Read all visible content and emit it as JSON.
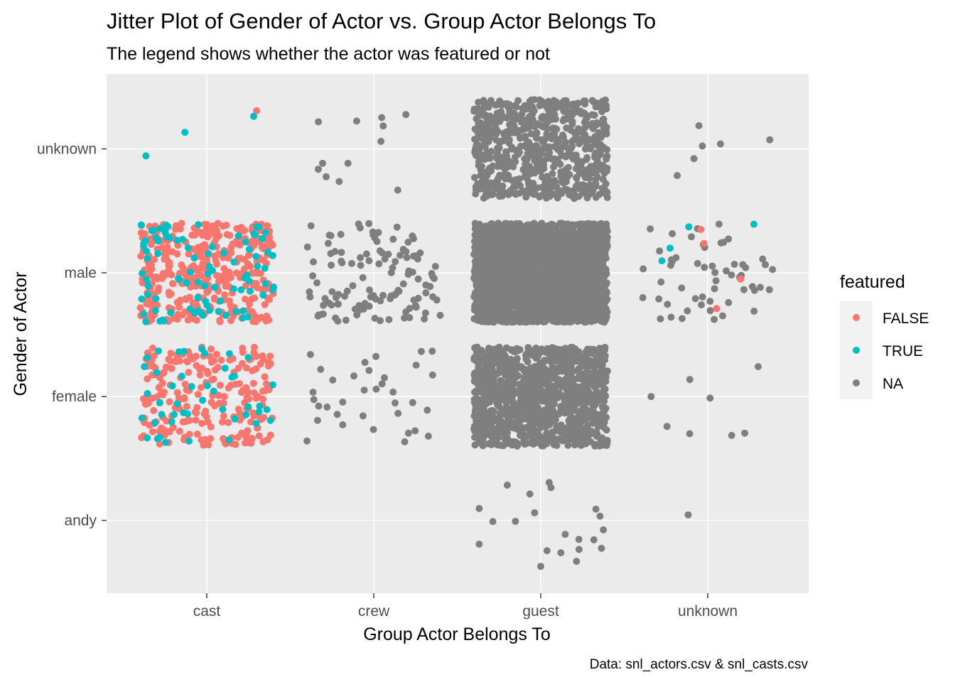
{
  "chart_data": {
    "type": "scatter",
    "subtype": "jitter",
    "title": "Jitter Plot of Gender of Actor vs. Group Actor Belongs To",
    "subtitle": "The legend shows whether the actor was featured or not",
    "xlabel": "Group Actor Belongs To",
    "ylabel": "Gender of Actor",
    "caption": "Data: snl_actors.csv & snl_casts.csv",
    "x_categories": [
      "cast",
      "crew",
      "guest",
      "unknown"
    ],
    "y_categories": [
      "andy",
      "female",
      "male",
      "unknown"
    ],
    "grid": true,
    "background": "#ebebeb",
    "legend": {
      "title": "featured",
      "position": "right",
      "entries": [
        {
          "label": "FALSE",
          "color": "#f8766d"
        },
        {
          "label": "TRUE",
          "color": "#00bfc4"
        },
        {
          "label": "NA",
          "color": "#7f7f7f"
        }
      ]
    },
    "groups": [
      {
        "x": "cast",
        "y": "unknown",
        "counts": {
          "FALSE": 1,
          "TRUE": 3,
          "NA": 0
        }
      },
      {
        "x": "cast",
        "y": "male",
        "counts": {
          "FALSE": 370,
          "TRUE": 90,
          "NA": 0
        }
      },
      {
        "x": "cast",
        "y": "female",
        "counts": {
          "FALSE": 230,
          "TRUE": 45,
          "NA": 0
        }
      },
      {
        "x": "crew",
        "y": "unknown",
        "counts": {
          "FALSE": 0,
          "TRUE": 0,
          "NA": 12
        }
      },
      {
        "x": "crew",
        "y": "male",
        "counts": {
          "FALSE": 0,
          "TRUE": 0,
          "NA": 120
        }
      },
      {
        "x": "crew",
        "y": "female",
        "counts": {
          "FALSE": 0,
          "TRUE": 0,
          "NA": 35
        }
      },
      {
        "x": "guest",
        "y": "unknown",
        "counts": {
          "FALSE": 0,
          "TRUE": 0,
          "NA": 700
        }
      },
      {
        "x": "guest",
        "y": "male",
        "counts": {
          "FALSE": 0,
          "TRUE": 0,
          "NA": 2600
        }
      },
      {
        "x": "guest",
        "y": "female",
        "counts": {
          "FALSE": 0,
          "TRUE": 0,
          "NA": 1100
        }
      },
      {
        "x": "guest",
        "y": "andy",
        "counts": {
          "FALSE": 0,
          "TRUE": 0,
          "NA": 21
        }
      },
      {
        "x": "unknown",
        "y": "unknown",
        "counts": {
          "FALSE": 0,
          "TRUE": 0,
          "NA": 6
        }
      },
      {
        "x": "unknown",
        "y": "male",
        "counts": {
          "FALSE": 4,
          "TRUE": 4,
          "NA": 55
        }
      },
      {
        "x": "unknown",
        "y": "female",
        "counts": {
          "FALSE": 0,
          "TRUE": 0,
          "NA": 8
        }
      },
      {
        "x": "unknown",
        "y": "andy",
        "counts": {
          "FALSE": 0,
          "TRUE": 0,
          "NA": 1
        }
      }
    ]
  }
}
